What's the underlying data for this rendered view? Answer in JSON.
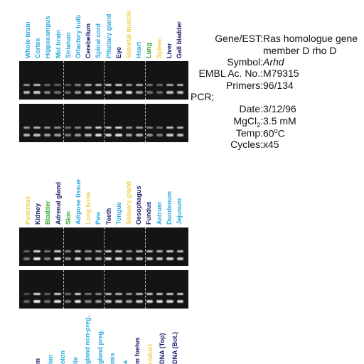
{
  "panel1": {
    "lanes": [
      {
        "label": "Whole brain",
        "color": "#29a8e0"
      },
      {
        "label": "Cortex",
        "color": "#29a8e0"
      },
      {
        "label": "Hippocampus",
        "color": "#29a8e0"
      },
      {
        "label": "Mid brain",
        "color": "#29a8e0"
      },
      {
        "label": "Striatum",
        "color": "#29a8e0"
      },
      {
        "label": "Olfactory bulb",
        "color": "#29a8e0"
      },
      {
        "label": "Cerebellum",
        "color": "#1a1a6e"
      },
      {
        "label": "Spinal cord",
        "color": "#29a8e0"
      },
      {
        "label": "Pituitary gland",
        "color": "#29a8e0"
      },
      {
        "label": "Eye",
        "color": "#1a1a6e"
      },
      {
        "label": "Skeletal muscle",
        "color": "#f2d04a"
      },
      {
        "label": "Heart",
        "color": "#29a8e0"
      },
      {
        "label": "Lung",
        "color": "#3aaa35"
      },
      {
        "label": "Spleen",
        "color": "#f2d04a"
      },
      {
        "label": "Liver",
        "color": "#1a1a6e"
      },
      {
        "label": "Gall bladder",
        "color": "#1a1a6e"
      }
    ]
  },
  "panel2": {
    "lanes": [
      {
        "label": "Pancreas",
        "color": "#f2d04a"
      },
      {
        "label": "Kidney",
        "color": "#1a1a6e"
      },
      {
        "label": "Bladder",
        "color": "#3aaa35"
      },
      {
        "label": "Adrenal gland",
        "color": "#1a1a6e"
      },
      {
        "label": "Skin",
        "color": "#3aaa35"
      },
      {
        "label": "Adipose tissue",
        "color": "#29a8e0"
      },
      {
        "label": "Long bone",
        "color": "#f2d04a"
      },
      {
        "label": "Paw",
        "color": "#29a8e0"
      },
      {
        "label": "Teeth",
        "color": "#1a1a6e"
      },
      {
        "label": "Tongue",
        "color": "#29a8e0"
      },
      {
        "label": "Salivary gland",
        "color": "#f2d04a"
      },
      {
        "label": "Oesophagus",
        "color": "#1a1a6e"
      },
      {
        "label": "Fundus",
        "color": "#1a1a6e"
      },
      {
        "label": "Antrum",
        "color": "#29a8e0"
      },
      {
        "label": "Duodenum",
        "color": "#29a8e0"
      },
      {
        "label": "Jejunum",
        "color": "#29a8e0"
      }
    ]
  },
  "panel3": {
    "lanes": [
      {
        "label": "m",
        "color": "#1a1a6e"
      },
      {
        "label": "lon",
        "color": "#29a8e0"
      },
      {
        "label": "olon",
        "color": "#29a8e0"
      },
      {
        "label": "lix",
        "color": "#29a8e0"
      },
      {
        "label": "gland non-preg.",
        "color": "#29a8e0"
      },
      {
        "label": "gland preg.",
        "color": "#29a8e0"
      },
      {
        "label": "mis",
        "color": "#29a8e0"
      },
      {
        "label": "a",
        "color": "#29a8e0"
      },
      {
        "label": "m foetus",
        "color": "#1a1a6e"
      },
      {
        "label": "roduct",
        "color": "#f2d04a"
      },
      {
        "label": "DNA (Top)",
        "color": "#1a1a6e"
      },
      {
        "label": "DNA (Bot.)",
        "color": "#1a1a6e"
      }
    ]
  },
  "info": {
    "gene_key": "Gene/EST:",
    "gene_value_line1": "Ras homologue gene",
    "gene_value_line2": "member D rho D",
    "symbol_key": "Symbol:",
    "symbol_value": "Arhd",
    "embl_key": "EMBL Ac. No.:",
    "embl_value": "M79315",
    "primers_key": "Primers:",
    "primers_value": "96/134",
    "pcr_label": "PCR;",
    "date_key": "Date:",
    "date_value": "3/12/96",
    "mgcl_key_main": "MgCl",
    "mgcl_key_sub": "2",
    "mgcl_key_colon": ":",
    "mgcl_value": "3.5 mM",
    "temp_key": "Temp:",
    "temp_value_num": "60",
    "temp_value_sup": "o",
    "temp_value_unit": "C",
    "cycles_key": "Cycles:",
    "cycles_value": "x45"
  },
  "gels": {
    "gel1_top": {
      "bands": [
        [
          0.55,
          0.7
        ],
        [
          0.75,
          0.8
        ],
        [
          0.35,
          0.45
        ],
        [
          0.3,
          0.35
        ],
        [
          0.25,
          0.3
        ],
        [
          0.5,
          0.55
        ],
        [
          0.7,
          0.8
        ],
        [
          0.75,
          0.85
        ],
        [
          0.8,
          0.85
        ],
        [
          0.85,
          0.8
        ],
        [
          0.6,
          0.9
        ],
        [
          0.7,
          0.6
        ],
        [
          0.4,
          0.35
        ],
        [
          0.35,
          0.3
        ],
        [
          0.65,
          0.75
        ],
        [
          0.7,
          0.75
        ]
      ]
    },
    "gel1_bottom": {
      "bands": [
        [
          0.6,
          0.7
        ],
        [
          0.7,
          0.75
        ],
        [
          0.55,
          0.6
        ],
        [
          0.5,
          0.55
        ],
        [
          0.35,
          0.4
        ],
        [
          0.5,
          0.55
        ],
        [
          0.65,
          0.7
        ],
        [
          0.85,
          0.9
        ],
        [
          0.8,
          0.85
        ],
        [
          0.9,
          0.9
        ],
        [
          0.55,
          0.6
        ],
        [
          0.6,
          0.7
        ],
        [
          0.45,
          0.5
        ],
        [
          0.35,
          0.4
        ],
        [
          0.75,
          0.8
        ],
        [
          0.7,
          0.75
        ]
      ]
    },
    "gel2_top": {
      "bands": [
        [
          0.3,
          0.4
        ],
        [
          0.9,
          0.95
        ],
        [
          0.4,
          0.45
        ],
        [
          0.85,
          0.9
        ],
        [
          0.45,
          0.5
        ],
        [
          0.8,
          0.85
        ],
        [
          0.55,
          0.6
        ],
        [
          0.6,
          0.65
        ],
        [
          0.85,
          0.9
        ],
        [
          0.8,
          0.85
        ],
        [
          0.55,
          0.6
        ],
        [
          0.7,
          0.75
        ],
        [
          0.75,
          0.8
        ],
        [
          0.7,
          0.75
        ],
        [
          0.8,
          0.85
        ],
        [
          0.75,
          0.8
        ]
      ]
    },
    "gel2_bottom": {
      "bands": [
        [
          0.2,
          0.3
        ],
        [
          0.9,
          0.95
        ],
        [
          0.3,
          0.35
        ],
        [
          0.85,
          0.9
        ],
        [
          0.35,
          0.4
        ],
        [
          0.85,
          0.9
        ],
        [
          0.4,
          0.45
        ],
        [
          0.5,
          0.55
        ],
        [
          0.75,
          0.8
        ],
        [
          0.7,
          0.75
        ],
        [
          0.55,
          0.6
        ],
        [
          0.75,
          0.8
        ],
        [
          0.8,
          0.85
        ],
        [
          0.8,
          0.85
        ],
        [
          0.8,
          0.85
        ],
        [
          0.8,
          0.85
        ]
      ]
    }
  }
}
